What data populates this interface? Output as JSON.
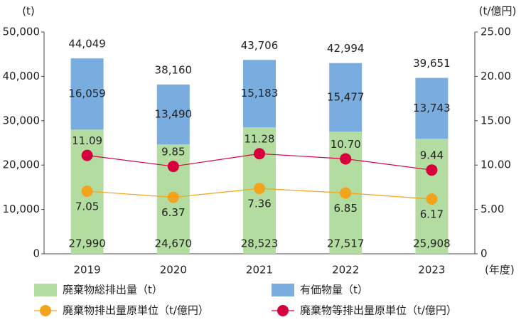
{
  "chart_data": {
    "type": "bar",
    "stacked": true,
    "y_unit": "(t)",
    "y2_unit": "(t/億円)",
    "x_unit": "(年度)",
    "categories": [
      "2019",
      "2020",
      "2021",
      "2022",
      "2023"
    ],
    "series": [
      {
        "name": "廃棄物総排出量（t）",
        "color": "#b3dca0",
        "values": [
          27990,
          24670,
          28523,
          27517,
          25908
        ],
        "value_labels": [
          "27,990",
          "24,670",
          "28,523",
          "27,517",
          "25,908"
        ]
      },
      {
        "name": "有価物量（t）",
        "color": "#7aaddf",
        "values": [
          16059,
          13490,
          15183,
          15477,
          13743
        ],
        "value_labels": [
          "16,059",
          "13,490",
          "15,183",
          "15,477",
          "13,743"
        ]
      },
      {
        "name": "廃棄物排出量原単位（t/億円）",
        "type": "line",
        "axis": "y2",
        "color": "#f3a41c",
        "values": [
          7.05,
          6.37,
          7.36,
          6.85,
          6.17
        ],
        "value_labels": [
          "7.05",
          "6.37",
          "7.36",
          "6.85",
          "6.17"
        ]
      },
      {
        "name": "廃棄物等排出量原単位（t/億円）",
        "type": "line",
        "axis": "y2",
        "color": "#d7003f",
        "values": [
          11.09,
          9.85,
          11.28,
          10.7,
          9.44
        ],
        "value_labels": [
          "11.09",
          "9.85",
          "11.28",
          "10.70",
          "9.44"
        ]
      }
    ],
    "totals": [
      44049,
      38160,
      43706,
      42994,
      39651
    ],
    "total_labels": [
      "44,049",
      "38,160",
      "43,706",
      "42,994",
      "39,651"
    ],
    "ylim": [
      0,
      50000
    ],
    "yticks": [
      0,
      {
        "value": 10000,
        "label": "10,000"
      },
      {
        "value": 20000,
        "label": "20,000"
      },
      {
        "value": 30000,
        "label": "30,000"
      },
      {
        "value": 40000,
        "label": "40,000"
      },
      {
        "value": 50000,
        "label": "50,000"
      }
    ],
    "y2lim": [
      0,
      25
    ],
    "y2ticks": [
      0,
      {
        "value": 5,
        "label": "5.00"
      },
      {
        "value": 10,
        "label": "10.00"
      },
      {
        "value": 15,
        "label": "15.00"
      },
      {
        "value": 20,
        "label": "20.00"
      },
      {
        "value": 25,
        "label": "25.00"
      }
    ],
    "grid": false
  }
}
